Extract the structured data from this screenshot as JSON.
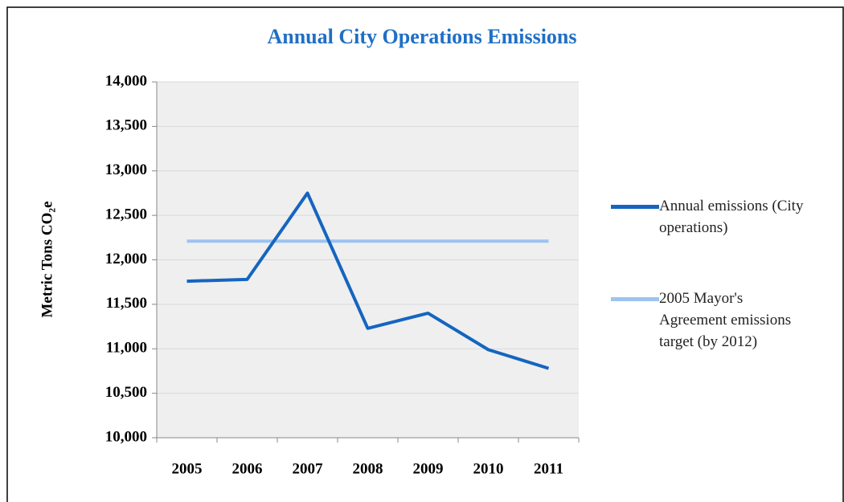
{
  "chart_data": {
    "type": "line",
    "title": "Annual City Operations Emissions",
    "y_label": "Metric Tons CO₂e",
    "categories": [
      "2005",
      "2006",
      "2007",
      "2008",
      "2009",
      "2010",
      "2011"
    ],
    "series": [
      {
        "name": "Annual emissions (City operations)",
        "color": "#1565c0",
        "values": [
          11760,
          11780,
          12750,
          11230,
          11400,
          10990,
          10780
        ]
      },
      {
        "name": "2005 Mayor's Agreement emissions target (by 2012)",
        "color": "#9dc3f0",
        "values": [
          12210,
          12210,
          12210,
          12210,
          12210,
          12210,
          12210
        ]
      }
    ],
    "ylim": [
      10000,
      14000
    ],
    "yticks": [
      {
        "value": 10000,
        "label": "10,000"
      },
      {
        "value": 10500,
        "label": "10,500"
      },
      {
        "value": 11000,
        "label": "11,000"
      },
      {
        "value": 11500,
        "label": "11,500"
      },
      {
        "value": 12000,
        "label": "12,000"
      },
      {
        "value": 12500,
        "label": "12,500"
      },
      {
        "value": 13000,
        "label": "13,000"
      },
      {
        "value": 13500,
        "label": "13,500"
      },
      {
        "value": 14000,
        "label": "14,000"
      }
    ],
    "grid": true,
    "legend": "right"
  }
}
